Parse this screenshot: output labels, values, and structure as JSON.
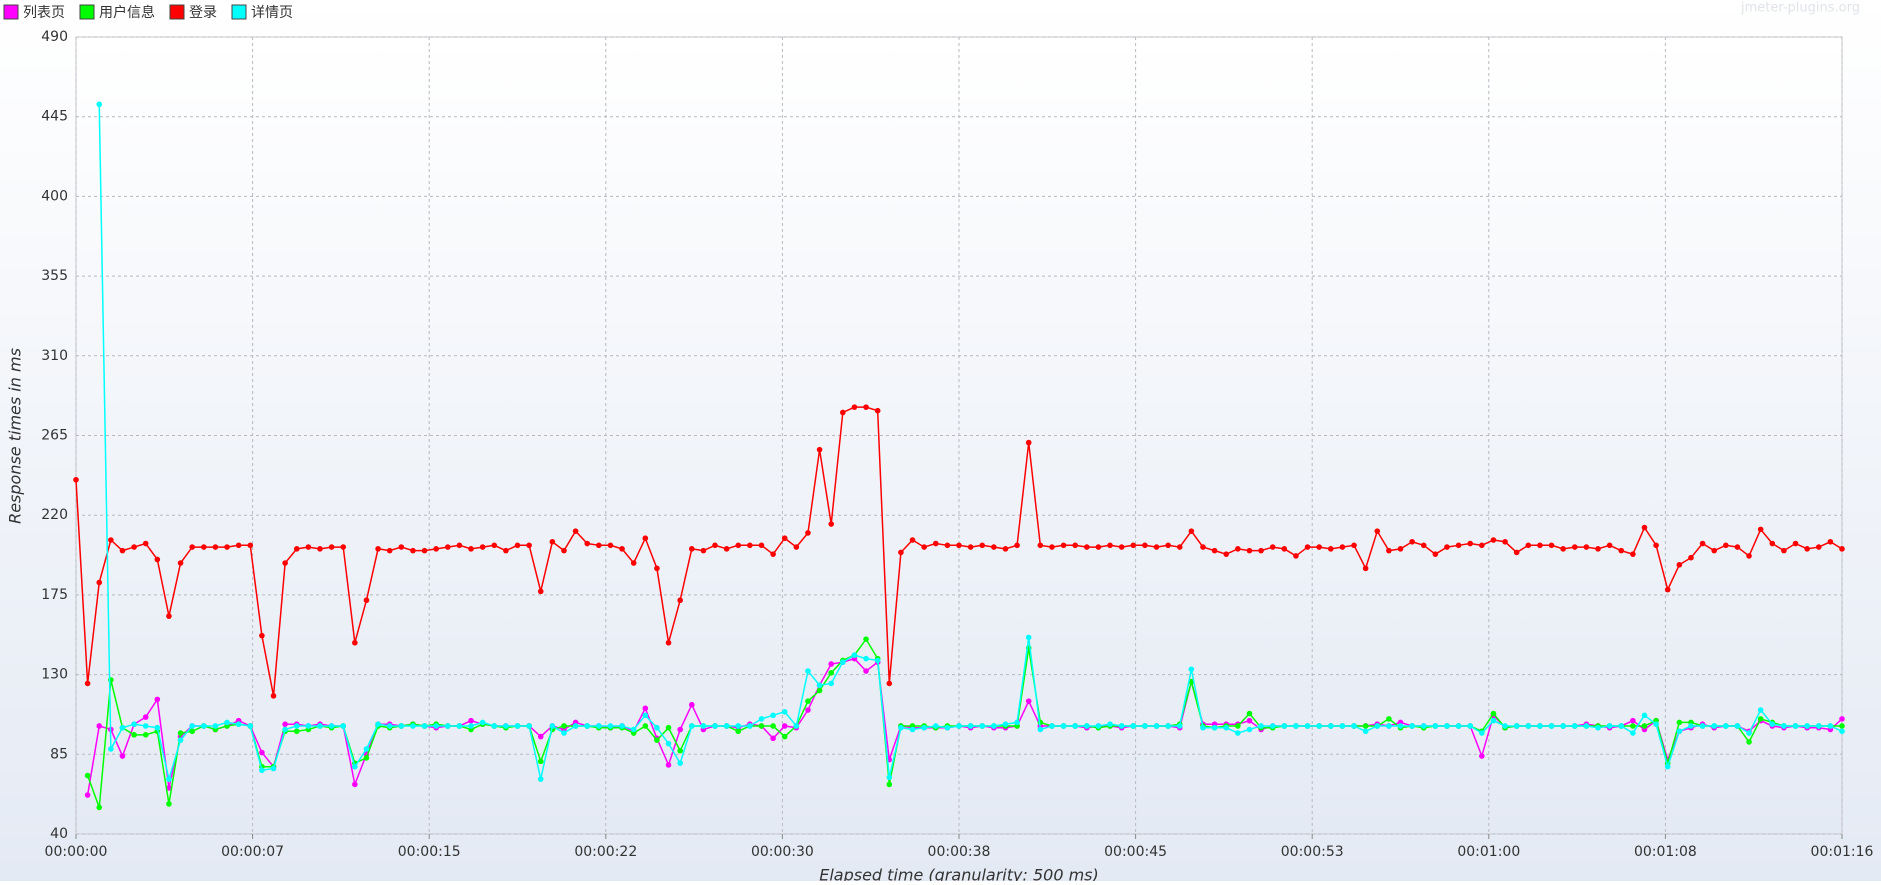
{
  "chart_data": {
    "type": "line",
    "watermark": "jmeter-plugins.org",
    "y_label": "Response times in ms",
    "x_label": "Elapsed time (granularity: 500 ms)",
    "ylim": [
      40,
      490
    ],
    "yticks": [
      40,
      85,
      130,
      175,
      220,
      265,
      310,
      355,
      400,
      445,
      490
    ],
    "xlim": [
      0,
      76
    ],
    "xticks": [
      {
        "value": 0,
        "label": "00:00:00"
      },
      {
        "value": 7.6,
        "label": "00:00:07"
      },
      {
        "value": 15.2,
        "label": "00:00:15"
      },
      {
        "value": 22.8,
        "label": "00:00:22"
      },
      {
        "value": 30.4,
        "label": "00:00:30"
      },
      {
        "value": 38,
        "label": "00:00:38"
      },
      {
        "value": 45.6,
        "label": "00:00:45"
      },
      {
        "value": 53.2,
        "label": "00:00:53"
      },
      {
        "value": 60.8,
        "label": "00:01:00"
      },
      {
        "value": 68.4,
        "label": "00:01:08"
      },
      {
        "value": 76,
        "label": "00:01:16"
      }
    ],
    "grid": true,
    "x": [
      0,
      0.5,
      1,
      1.5,
      2,
      2.5,
      3,
      3.5,
      4,
      4.5,
      5,
      5.5,
      6,
      6.5,
      7,
      7.5,
      8,
      8.5,
      9,
      9.5,
      10,
      10.5,
      11,
      11.5,
      12,
      12.5,
      13,
      13.5,
      14,
      14.5,
      15,
      15.5,
      16,
      16.5,
      17,
      17.5,
      18,
      18.5,
      19,
      19.5,
      20,
      20.5,
      21,
      21.5,
      22,
      22.5,
      23,
      23.5,
      24,
      24.5,
      25,
      25.5,
      26,
      26.5,
      27,
      27.5,
      28,
      28.5,
      29,
      29.5,
      30,
      30.5,
      31,
      31.5,
      32,
      32.5,
      33,
      33.5,
      34,
      34.5,
      35,
      35.5,
      36,
      36.5,
      37,
      37.5,
      38,
      38.5,
      39,
      39.5,
      40,
      40.5,
      41,
      41.5,
      42,
      42.5,
      43,
      43.5,
      44,
      44.5,
      45,
      45.5,
      46,
      46.5,
      47,
      47.5,
      48,
      48.5,
      49,
      49.5,
      50,
      50.5,
      51,
      51.5,
      52,
      52.5,
      53,
      53.5,
      54,
      54.5,
      55,
      55.5,
      56,
      56.5,
      57,
      57.5,
      58,
      58.5,
      59,
      59.5,
      60,
      60.5,
      61,
      61.5,
      62,
      62.5,
      63,
      63.5,
      64,
      64.5,
      65,
      65.5,
      66,
      66.5,
      67,
      67.5,
      68,
      68.5,
      69,
      69.5,
      70,
      70.5,
      71,
      71.5,
      72,
      72.5,
      73,
      73.5,
      74,
      74.5,
      75,
      75.5,
      76
    ],
    "series": [
      {
        "name": "列表页",
        "color": "#ff00ff",
        "values": [
          null,
          62,
          101,
          99,
          84,
          102,
          106,
          116,
          66,
          95,
          101,
          101,
          99,
          101,
          104,
          101,
          86,
          78,
          102,
          102,
          101,
          102,
          101,
          101,
          68,
          85,
          102,
          102,
          101,
          102,
          101,
          100,
          101,
          101,
          104,
          102,
          101,
          101,
          101,
          101,
          95,
          101,
          99,
          103,
          101,
          101,
          100,
          101,
          98,
          111,
          94,
          79,
          99,
          113,
          99,
          101,
          101,
          100,
          102,
          101,
          94,
          101,
          100,
          110,
          124,
          136,
          137,
          139,
          132,
          137,
          82,
          101,
          100,
          100,
          100,
          100,
          101,
          100,
          101,
          100,
          100,
          101,
          115,
          101,
          101,
          101,
          101,
          100,
          101,
          101,
          100,
          101,
          101,
          101,
          101,
          100,
          126,
          102,
          102,
          102,
          102,
          104,
          99,
          101,
          101,
          101,
          101,
          101,
          101,
          101,
          101,
          101,
          102,
          101,
          103,
          101,
          101,
          101,
          101,
          101,
          101,
          84,
          107,
          100,
          101,
          101,
          101,
          101,
          101,
          101,
          102,
          101,
          100,
          101,
          104,
          99,
          104,
          82,
          98,
          100,
          102,
          100,
          101,
          101,
          98,
          104,
          101,
          100,
          101,
          100,
          100,
          99,
          105
        ]
      },
      {
        "name": "用户信息",
        "color": "#00ff00",
        "values": [
          null,
          73,
          55,
          127,
          100,
          96,
          96,
          98,
          57,
          97,
          98,
          101,
          99,
          101,
          102,
          101,
          78,
          78,
          98,
          98,
          99,
          101,
          100,
          101,
          80,
          83,
          101,
          100,
          101,
          102,
          101,
          102,
          101,
          101,
          99,
          102,
          101,
          100,
          101,
          101,
          81,
          99,
          101,
          101,
          101,
          100,
          100,
          100,
          97,
          101,
          93,
          100,
          87,
          101,
          101,
          101,
          101,
          98,
          101,
          101,
          101,
          95,
          101,
          115,
          121,
          131,
          138,
          141,
          150,
          139,
          68,
          101,
          101,
          101,
          100,
          101,
          101,
          101,
          101,
          101,
          101,
          101,
          145,
          103,
          101,
          101,
          101,
          101,
          100,
          101,
          101,
          101,
          101,
          101,
          101,
          102,
          126,
          101,
          100,
          101,
          101,
          108,
          100,
          100,
          101,
          101,
          101,
          101,
          101,
          101,
          101,
          101,
          101,
          105,
          100,
          101,
          100,
          101,
          101,
          101,
          101,
          98,
          108,
          100,
          101,
          101,
          101,
          101,
          101,
          101,
          101,
          101,
          101,
          101,
          101,
          101,
          104,
          80,
          103,
          103,
          101,
          101,
          101,
          101,
          92,
          105,
          103,
          101,
          101,
          101,
          101,
          101,
          101
        ]
      },
      {
        "name": "登录",
        "color": "#ff0000",
        "values": [
          240,
          125,
          182,
          206,
          200,
          202,
          204,
          195,
          163,
          193,
          202,
          202,
          202,
          202,
          203,
          203,
          152,
          118,
          193,
          201,
          202,
          201,
          202,
          202,
          148,
          172,
          201,
          200,
          202,
          200,
          200,
          201,
          202,
          203,
          201,
          202,
          203,
          200,
          203,
          203,
          177,
          205,
          200,
          211,
          204,
          203,
          203,
          201,
          193,
          207,
          190,
          148,
          172,
          201,
          200,
          203,
          201,
          203,
          203,
          203,
          198,
          207,
          202,
          210,
          257,
          215,
          278,
          281,
          281,
          279,
          125,
          199,
          206,
          202,
          204,
          203,
          203,
          202,
          203,
          202,
          201,
          203,
          261,
          203,
          202,
          203,
          203,
          202,
          202,
          203,
          202,
          203,
          203,
          202,
          203,
          202,
          211,
          202,
          200,
          198,
          201,
          200,
          200,
          202,
          201,
          197,
          202,
          202,
          201,
          202,
          203,
          190,
          211,
          200,
          201,
          205,
          203,
          198,
          202,
          203,
          204,
          203,
          206,
          205,
          199,
          203,
          203,
          203,
          201,
          202,
          202,
          201,
          203,
          200,
          198,
          213,
          203,
          178,
          192,
          196,
          204,
          200,
          203,
          202,
          197,
          212,
          204,
          200,
          204,
          201,
          202,
          205,
          201
        ]
      },
      {
        "name": "详情页",
        "color": "#00ffff",
        "values": [
          null,
          null,
          452,
          88,
          100,
          102,
          101,
          100,
          71,
          93,
          101,
          101,
          101,
          103,
          102,
          101,
          76,
          77,
          99,
          101,
          101,
          101,
          101,
          101,
          78,
          88,
          102,
          101,
          101,
          101,
          101,
          101,
          101,
          101,
          101,
          103,
          101,
          101,
          101,
          101,
          71,
          101,
          97,
          101,
          101,
          101,
          101,
          101,
          99,
          107,
          100,
          91,
          80,
          101,
          101,
          101,
          101,
          101,
          101,
          105,
          107,
          109,
          101,
          132,
          124,
          125,
          137,
          141,
          139,
          138,
          72,
          100,
          99,
          100,
          101,
          100,
          101,
          101,
          101,
          101,
          102,
          103,
          151,
          99,
          101,
          101,
          101,
          101,
          101,
          102,
          101,
          101,
          101,
          101,
          101,
          101,
          133,
          100,
          100,
          100,
          97,
          99,
          101,
          101,
          101,
          101,
          101,
          101,
          101,
          101,
          101,
          98,
          101,
          101,
          101,
          101,
          101,
          101,
          101,
          101,
          101,
          97,
          104,
          101,
          101,
          101,
          101,
          101,
          101,
          101,
          101,
          100,
          101,
          101,
          97,
          107,
          102,
          78,
          98,
          101,
          101,
          101,
          101,
          101,
          97,
          110,
          102,
          101,
          101,
          101,
          101,
          101,
          98
        ]
      }
    ]
  }
}
